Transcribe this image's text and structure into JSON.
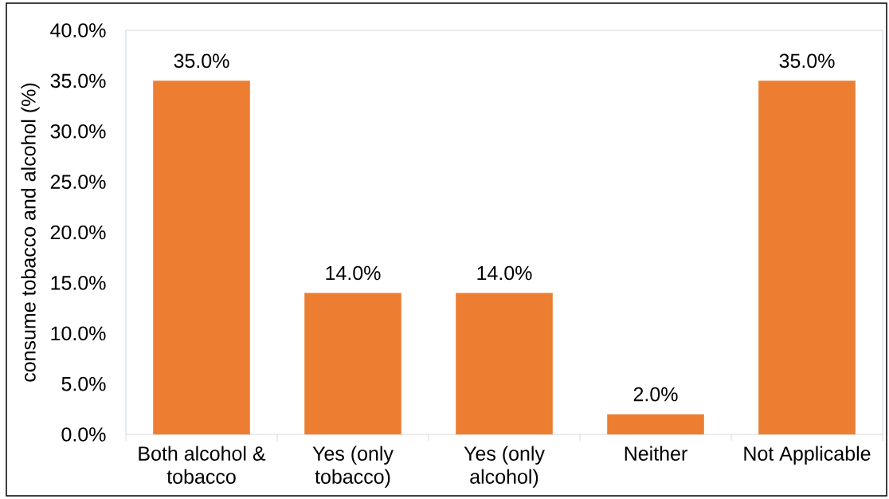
{
  "chart_data": {
    "type": "bar",
    "ylabel": "consume tobacco and alcohol (%)",
    "categories": [
      "Both alcohol & tobacco",
      "Yes (only tobacco)",
      "Yes (only alcohol)",
      "Neither",
      "Not Applicable"
    ],
    "values": [
      35,
      14,
      14,
      2,
      35
    ],
    "value_labels": [
      "35.0%",
      "14.0%",
      "14.0%",
      "2.0%",
      "35.0%"
    ],
    "color": "#ed7d31",
    "ylim": [
      0,
      40
    ],
    "yticks": [
      {
        "value": 0,
        "label": "0.0%"
      },
      {
        "value": 5,
        "label": "5.0%"
      },
      {
        "value": 10,
        "label": "10.0%"
      },
      {
        "value": 15,
        "label": "15.0%"
      },
      {
        "value": 20,
        "label": "20.0%"
      },
      {
        "value": 25,
        "label": "25.0%"
      },
      {
        "value": 30,
        "label": "30.0%"
      },
      {
        "value": 35,
        "label": "35.0%"
      },
      {
        "value": 40,
        "label": "40.0%"
      }
    ]
  }
}
